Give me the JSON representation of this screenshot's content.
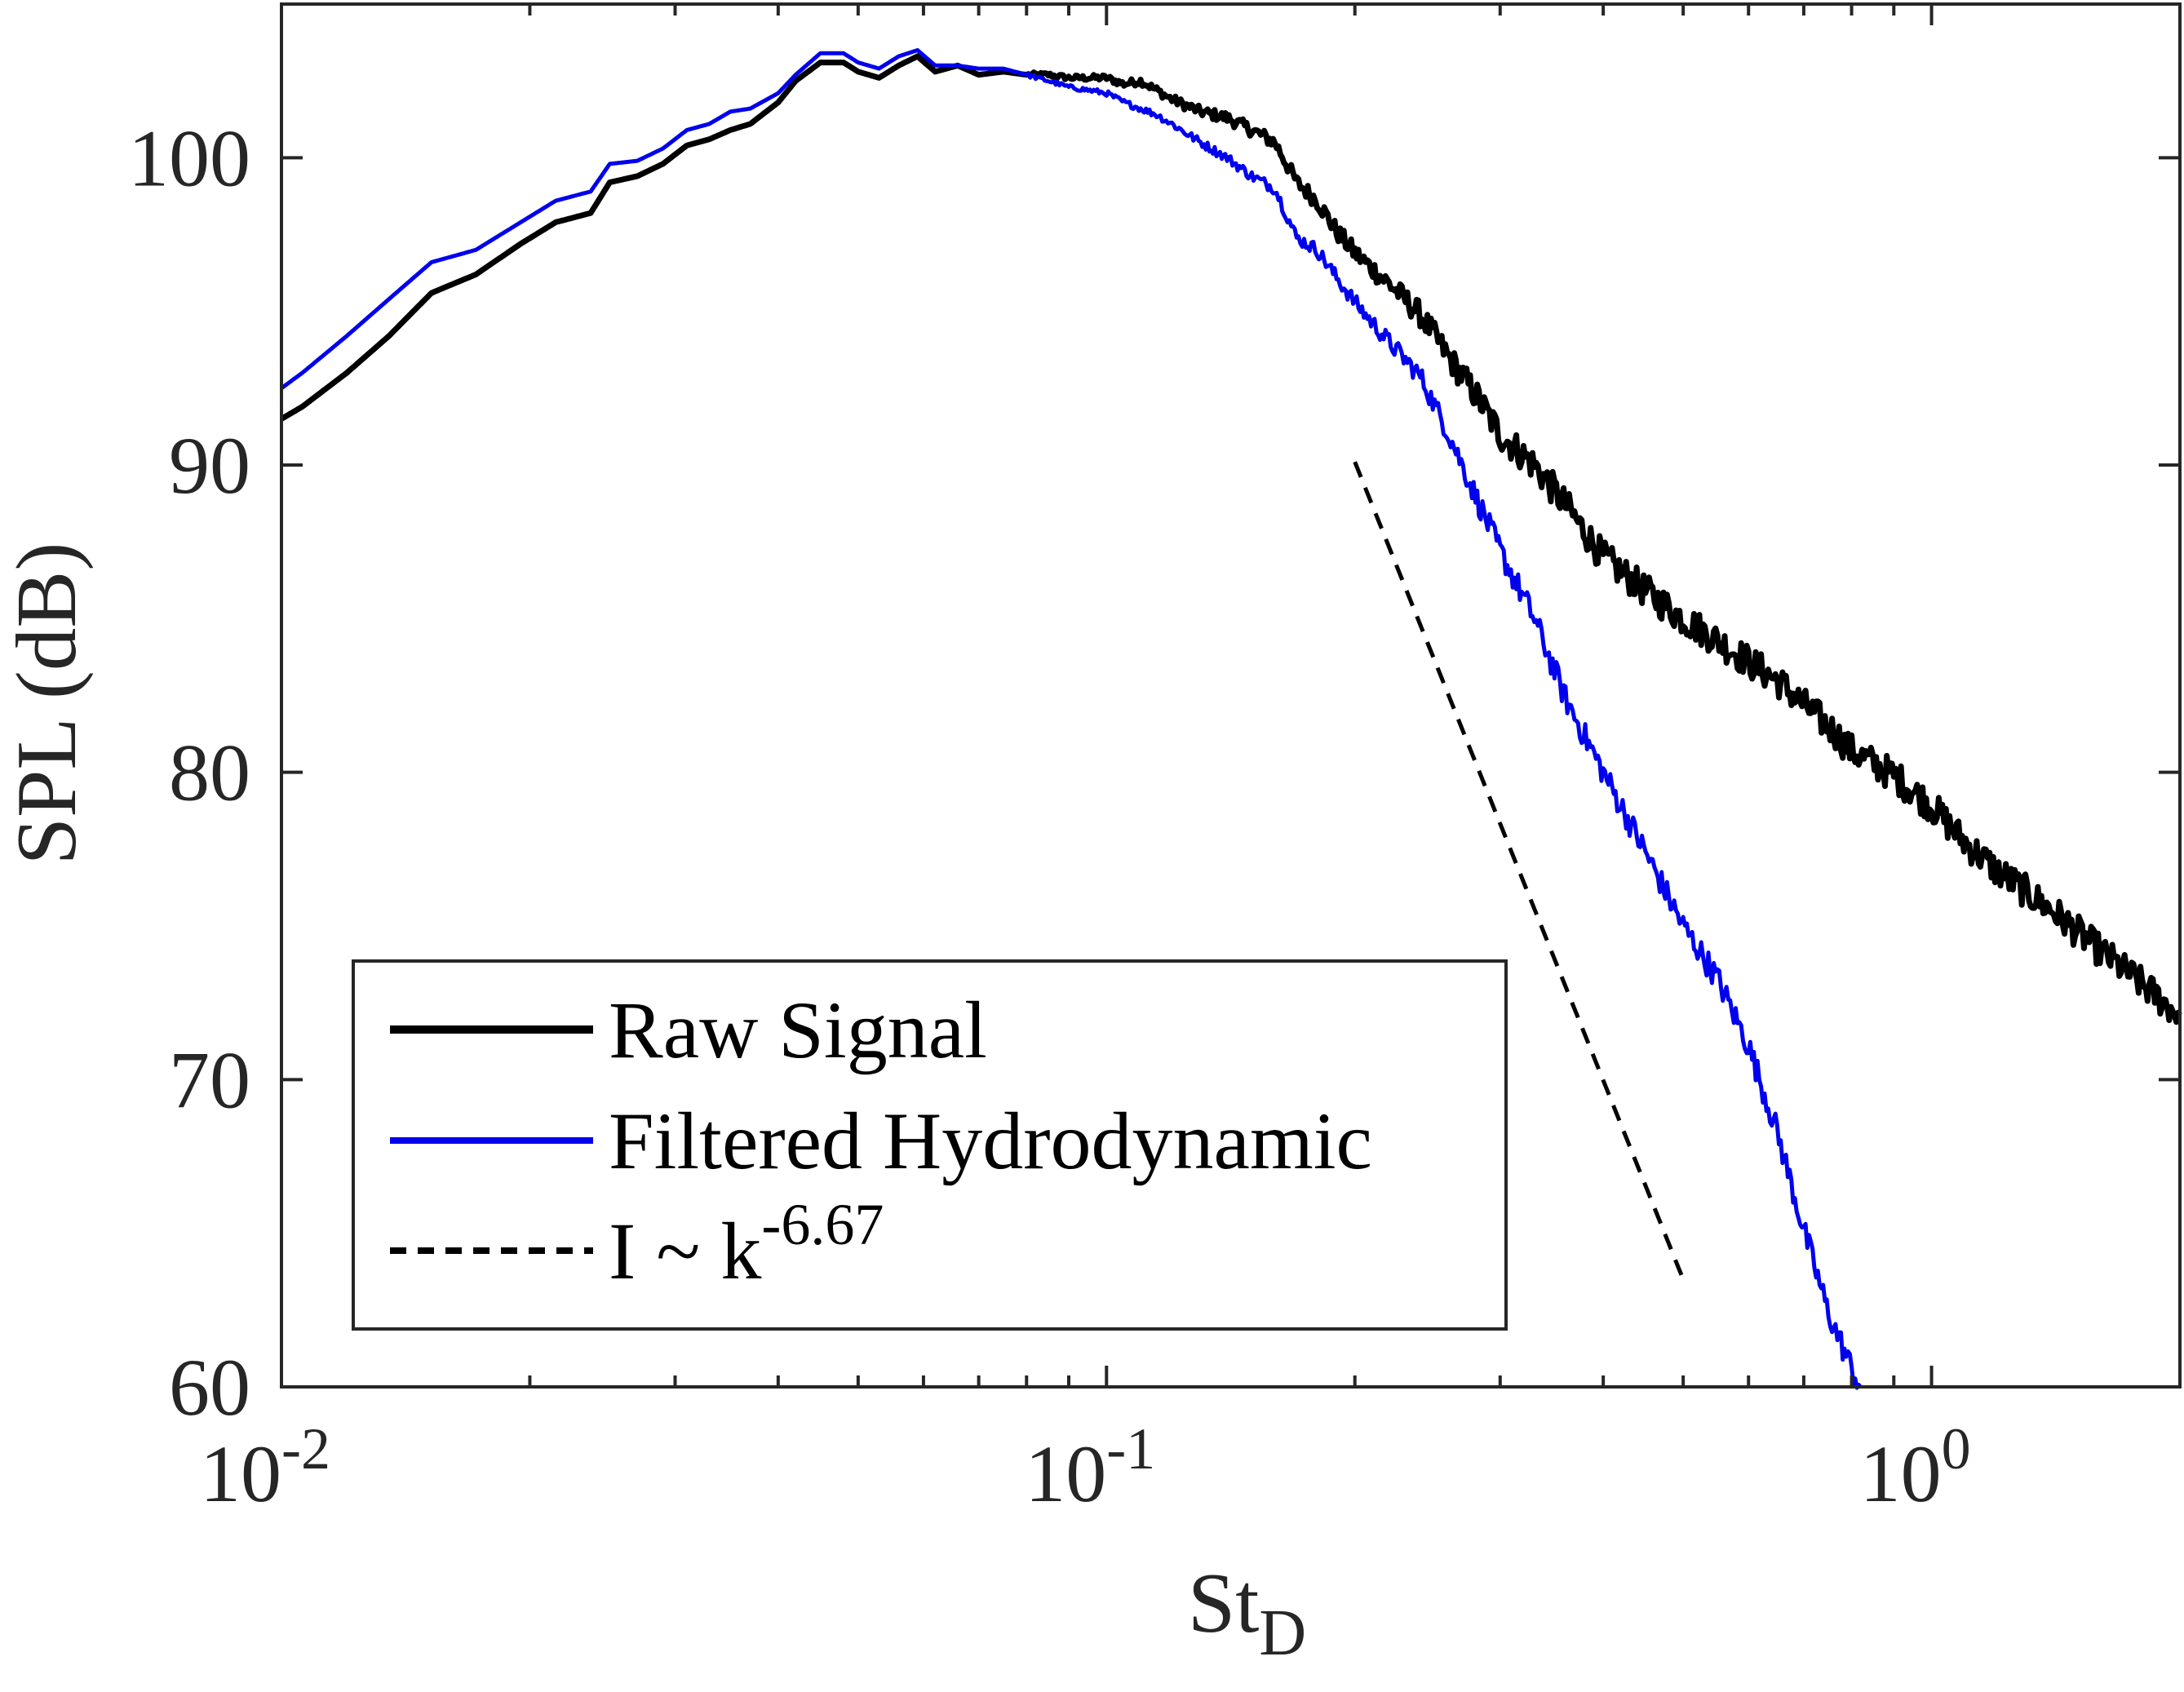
{
  "chart_data": {
    "type": "line",
    "xlabel": {
      "base": "St",
      "sub": "D"
    },
    "ylabel": "SPL (dB)",
    "xscale": "log",
    "xlim": [
      0.01,
      2.0
    ],
    "ylim": [
      60,
      105
    ],
    "grid": false,
    "legend_position": "bottom-left",
    "x_ticks": [
      {
        "value": 0.01,
        "base": "10",
        "exp": "-2"
      },
      {
        "value": 0.1,
        "base": "10",
        "exp": "-1"
      },
      {
        "value": 1,
        "base": "10",
        "exp": "0"
      }
    ],
    "y_ticks": [
      {
        "value": 60,
        "label": "60"
      },
      {
        "value": 70,
        "label": "70"
      },
      {
        "value": 80,
        "label": "80"
      },
      {
        "value": 90,
        "label": "90"
      },
      {
        "value": 100,
        "label": "100"
      }
    ],
    "series": [
      {
        "name": "Raw Signal",
        "color": "#000000",
        "style": "solid-thick",
        "noise_db": 0.55,
        "points": [
          [
            0.01,
            91.5
          ],
          [
            0.0106,
            91.9
          ],
          [
            0.012,
            93.0
          ],
          [
            0.0135,
            94.2
          ],
          [
            0.0152,
            95.6
          ],
          [
            0.0172,
            96.2
          ],
          [
            0.0195,
            97.2
          ],
          [
            0.0215,
            97.9
          ],
          [
            0.0237,
            98.2
          ],
          [
            0.025,
            99.2
          ],
          [
            0.027,
            99.4
          ],
          [
            0.029,
            99.8
          ],
          [
            0.031,
            100.4
          ],
          [
            0.033,
            100.6
          ],
          [
            0.035,
            100.9
          ],
          [
            0.037,
            101.1
          ],
          [
            0.04,
            101.8
          ],
          [
            0.042,
            102.5
          ],
          [
            0.045,
            103.1
          ],
          [
            0.048,
            103.1
          ],
          [
            0.05,
            102.8
          ],
          [
            0.053,
            102.6
          ],
          [
            0.056,
            103.0
          ],
          [
            0.059,
            103.3
          ],
          [
            0.062,
            102.8
          ],
          [
            0.066,
            103.0
          ],
          [
            0.07,
            102.7
          ],
          [
            0.075,
            102.8
          ],
          [
            0.08,
            102.7
          ],
          [
            0.085,
            102.7
          ],
          [
            0.09,
            102.6
          ],
          [
            0.095,
            102.6
          ],
          [
            0.1,
            102.6
          ],
          [
            0.105,
            102.4
          ],
          [
            0.11,
            102.5
          ],
          [
            0.115,
            102.2
          ],
          [
            0.12,
            101.9
          ],
          [
            0.13,
            101.5
          ],
          [
            0.14,
            101.3
          ],
          [
            0.15,
            100.9
          ],
          [
            0.16,
            100.5
          ],
          [
            0.17,
            99.2
          ],
          [
            0.18,
            98.6
          ],
          [
            0.19,
            97.6
          ],
          [
            0.2,
            96.9
          ],
          [
            0.22,
            95.9
          ],
          [
            0.24,
            94.9
          ],
          [
            0.26,
            93.5
          ],
          [
            0.28,
            92.3
          ],
          [
            0.3,
            91.0
          ],
          [
            0.33,
            90.0
          ],
          [
            0.36,
            88.7
          ],
          [
            0.4,
            87.0
          ],
          [
            0.45,
            85.9
          ],
          [
            0.5,
            85.0
          ],
          [
            0.55,
            84.3
          ],
          [
            0.6,
            83.6
          ],
          [
            0.65,
            83.0
          ],
          [
            0.7,
            82.2
          ],
          [
            0.75,
            81.5
          ],
          [
            0.8,
            80.7
          ],
          [
            0.9,
            79.9
          ],
          [
            1.0,
            78.9
          ],
          [
            1.1,
            77.7
          ],
          [
            1.2,
            76.8
          ],
          [
            1.4,
            75.5
          ],
          [
            1.6,
            74.2
          ],
          [
            1.8,
            73.1
          ],
          [
            2.0,
            72.1
          ]
        ]
      },
      {
        "name": "Filtered Hydrodynamic",
        "color": "#0000ee",
        "style": "solid",
        "noise_db": 0.45,
        "points": [
          [
            0.01,
            92.5
          ],
          [
            0.0106,
            93.0
          ],
          [
            0.012,
            94.2
          ],
          [
            0.0135,
            95.4
          ],
          [
            0.0152,
            96.6
          ],
          [
            0.0172,
            97.0
          ],
          [
            0.0195,
            97.9
          ],
          [
            0.0215,
            98.6
          ],
          [
            0.0237,
            98.9
          ],
          [
            0.025,
            99.8
          ],
          [
            0.027,
            99.9
          ],
          [
            0.029,
            100.3
          ],
          [
            0.031,
            100.9
          ],
          [
            0.033,
            101.1
          ],
          [
            0.035,
            101.5
          ],
          [
            0.037,
            101.6
          ],
          [
            0.04,
            102.1
          ],
          [
            0.042,
            102.7
          ],
          [
            0.045,
            103.4
          ],
          [
            0.048,
            103.4
          ],
          [
            0.05,
            103.1
          ],
          [
            0.053,
            102.9
          ],
          [
            0.056,
            103.3
          ],
          [
            0.059,
            103.5
          ],
          [
            0.062,
            103.0
          ],
          [
            0.066,
            103.0
          ],
          [
            0.07,
            102.9
          ],
          [
            0.075,
            102.9
          ],
          [
            0.08,
            102.7
          ],
          [
            0.085,
            102.5
          ],
          [
            0.09,
            102.3
          ],
          [
            0.095,
            102.2
          ],
          [
            0.1,
            102.1
          ],
          [
            0.105,
            101.8
          ],
          [
            0.11,
            101.6
          ],
          [
            0.115,
            101.4
          ],
          [
            0.12,
            101.1
          ],
          [
            0.13,
            100.5
          ],
          [
            0.14,
            100.0
          ],
          [
            0.15,
            99.4
          ],
          [
            0.16,
            99.0
          ],
          [
            0.17,
            97.4
          ],
          [
            0.18,
            97.0
          ],
          [
            0.19,
            96.1
          ],
          [
            0.2,
            95.3
          ],
          [
            0.22,
            94.0
          ],
          [
            0.24,
            92.9
          ],
          [
            0.26,
            91.0
          ],
          [
            0.28,
            89.0
          ],
          [
            0.3,
            87.2
          ],
          [
            0.33,
            85.0
          ],
          [
            0.36,
            82.4
          ],
          [
            0.4,
            80.0
          ],
          [
            0.45,
            77.4
          ],
          [
            0.5,
            75.0
          ],
          [
            0.55,
            73.3
          ],
          [
            0.6,
            71.1
          ],
          [
            0.65,
            68.3
          ],
          [
            0.7,
            65.1
          ],
          [
            0.75,
            62.4
          ],
          [
            0.8,
            60.6
          ],
          [
            0.82,
            60.0
          ]
        ]
      },
      {
        "name": "I ~ k^-6.67",
        "color": "#000000",
        "style": "dashed",
        "points": [
          [
            0.2,
            90.1
          ],
          [
            0.5,
            63.5
          ]
        ]
      }
    ],
    "legend": [
      {
        "label": "Raw Signal",
        "color": "#000000",
        "style": "solid-thick"
      },
      {
        "label": "Filtered Hydrodynamic",
        "color": "#0000ee",
        "style": "solid"
      },
      {
        "label_main": "I ~ k",
        "label_sup": "-6.67",
        "color": "#000000",
        "style": "dashed"
      }
    ]
  }
}
